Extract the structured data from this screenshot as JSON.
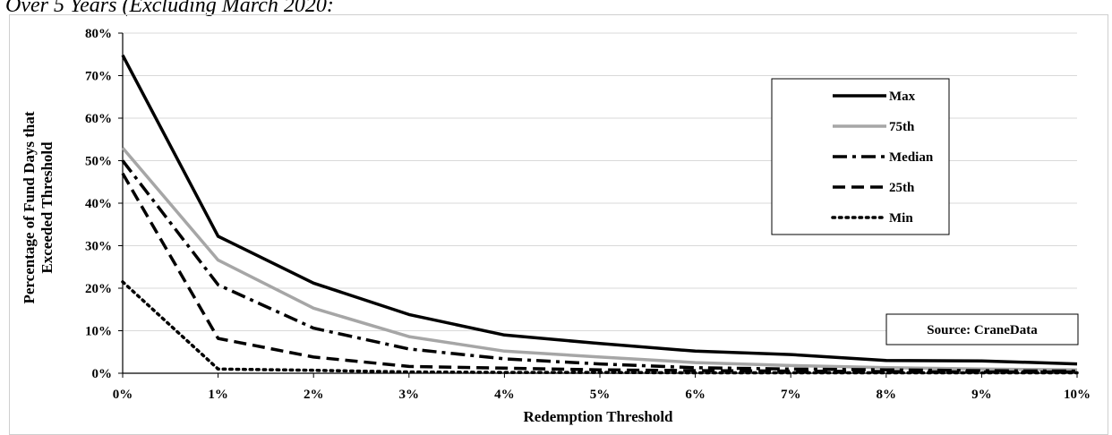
{
  "caption": "Over 5 Years (Excluding March 2020:",
  "chart_data": {
    "type": "line",
    "x": [
      "0%",
      "1%",
      "2%",
      "3%",
      "4%",
      "5%",
      "6%",
      "7%",
      "8%",
      "9%",
      "10%"
    ],
    "xlabel": "Redemption Threshold",
    "ylabel_lines": [
      "Percentage of Fund Days that",
      "Exceeded Threshold"
    ],
    "ylim": [
      0,
      80
    ],
    "yticks": [
      "0%",
      "10%",
      "20%",
      "30%",
      "40%",
      "50%",
      "60%",
      "70%",
      "80%"
    ],
    "grid": "horizontal",
    "legend_position": "top-right",
    "series": [
      {
        "name": "Max",
        "color": "#000000",
        "dash": "solid",
        "values": [
          74.8,
          32.2,
          21.2,
          13.8,
          9.0,
          7.0,
          5.2,
          4.4,
          3.0,
          2.9,
          2.2
        ]
      },
      {
        "name": "75th",
        "color": "#a6a6a6",
        "dash": "solid",
        "values": [
          53.0,
          26.6,
          15.3,
          8.6,
          5.2,
          3.8,
          2.5,
          1.8,
          1.3,
          1.0,
          0.8
        ]
      },
      {
        "name": "Median",
        "color": "#000000",
        "dash": "dashdot",
        "values": [
          50.0,
          20.8,
          10.6,
          5.7,
          3.4,
          2.2,
          1.3,
          1.0,
          0.8,
          0.6,
          0.5
        ]
      },
      {
        "name": "25th",
        "color": "#000000",
        "dash": "dashed",
        "values": [
          47.0,
          8.2,
          3.8,
          1.6,
          1.2,
          0.8,
          0.6,
          0.5,
          0.4,
          0.3,
          0.3
        ]
      },
      {
        "name": "Min",
        "color": "#000000",
        "dash": "dotted",
        "values": [
          21.5,
          1.0,
          0.7,
          0.3,
          0.2,
          0.2,
          0.1,
          0.1,
          0.1,
          0.1,
          0.1
        ]
      }
    ],
    "source": "Source: CraneData"
  }
}
